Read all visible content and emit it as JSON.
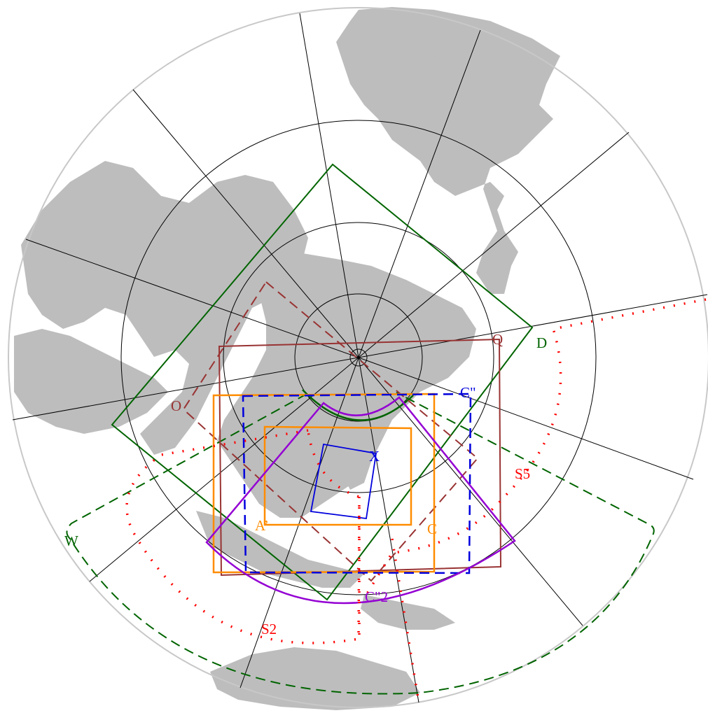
{
  "map": {
    "colors": {
      "land": "#bdbdbd",
      "graticule": "#000000",
      "domain_D_W": "#006400",
      "domain_O_Q": "#993333",
      "domain_C_A": "#ff8c00",
      "domain_C2_X": "#0000dd",
      "domain_C2_2": "#9400d3",
      "domain_S": "#ff0000"
    },
    "labels": {
      "D": "D",
      "Q": "Q",
      "O": "O",
      "C2": "C\"",
      "X": "X",
      "S5": "S5",
      "A1": "A’",
      "C": "C",
      "W": "W",
      "C22": "C\"2",
      "S2": "S2"
    }
  }
}
